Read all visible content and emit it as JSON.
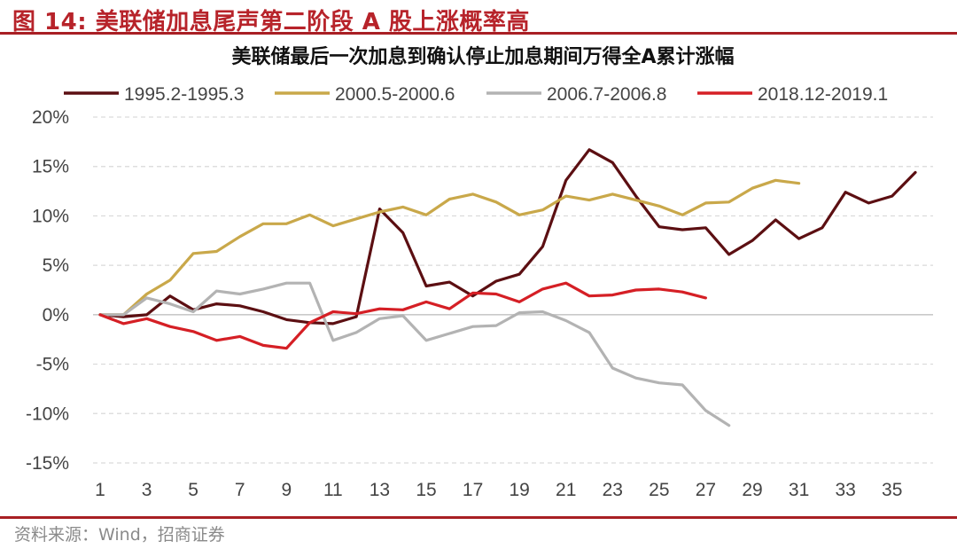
{
  "figure": {
    "label": "图 14:",
    "caption": "美联储加息尾声第二阶段 A 股上涨概率高",
    "source": "资料来源：Wind，招商证券"
  },
  "chart_data": {
    "type": "line",
    "title": "美联储最后一次加息到确认停止加息期间万得全A累计涨幅",
    "xlabel": "",
    "ylabel": "",
    "ylim": [
      -0.15,
      0.2
    ],
    "yticks": [
      -0.15,
      -0.1,
      -0.05,
      0,
      0.05,
      0.1,
      0.15,
      0.2
    ],
    "ytick_labels": [
      "-15%",
      "-10%",
      "-5%",
      "0%",
      "5%",
      "10%",
      "15%",
      "20%"
    ],
    "xlim": [
      1,
      36
    ],
    "xticks": [
      1,
      3,
      5,
      7,
      9,
      11,
      13,
      15,
      17,
      19,
      21,
      23,
      25,
      27,
      29,
      31,
      33,
      35
    ],
    "grid": "horizontal-dashed",
    "legend_position": "top",
    "series": [
      {
        "name": "1995.2-1995.3",
        "color": "#5c0f12",
        "values": [
          0.0,
          -0.002,
          0.0,
          0.019,
          0.005,
          0.011,
          0.009,
          0.003,
          -0.005,
          -0.008,
          -0.009,
          -0.002,
          0.107,
          0.083,
          0.029,
          0.033,
          0.019,
          0.034,
          0.041,
          0.069,
          0.136,
          0.167,
          0.154,
          0.12,
          0.089,
          0.086,
          0.088,
          0.061,
          0.075,
          0.096,
          0.077,
          0.088,
          0.124,
          0.113,
          0.12,
          0.144
        ]
      },
      {
        "name": "2000.5-2000.6",
        "color": "#c9a84a",
        "values": [
          0.0,
          0.0,
          0.021,
          0.035,
          0.062,
          0.064,
          0.079,
          0.092,
          0.092,
          0.101,
          0.09,
          0.097,
          0.104,
          0.109,
          0.101,
          0.117,
          0.122,
          0.114,
          0.101,
          0.106,
          0.12,
          0.116,
          0.122,
          0.116,
          0.11,
          0.101,
          0.113,
          0.114,
          0.128,
          0.136,
          0.133
        ]
      },
      {
        "name": "2006.7-2006.8",
        "color": "#b3b3b3",
        "values": [
          0.0,
          0.0,
          0.017,
          0.011,
          0.003,
          0.024,
          0.021,
          0.026,
          0.032,
          0.032,
          -0.026,
          -0.018,
          -0.004,
          -0.001,
          -0.026,
          -0.019,
          -0.012,
          -0.011,
          0.002,
          0.003,
          -0.006,
          -0.018,
          -0.054,
          -0.064,
          -0.069,
          -0.071,
          -0.097,
          -0.112
        ]
      },
      {
        "name": "2018.12-2019.1",
        "color": "#d51f25",
        "values": [
          0.0,
          -0.009,
          -0.004,
          -0.012,
          -0.017,
          -0.026,
          -0.022,
          -0.031,
          -0.034,
          -0.008,
          0.003,
          0.001,
          0.006,
          0.005,
          0.013,
          0.006,
          0.022,
          0.021,
          0.013,
          0.026,
          0.032,
          0.019,
          0.02,
          0.025,
          0.026,
          0.023,
          0.017
        ]
      }
    ]
  }
}
